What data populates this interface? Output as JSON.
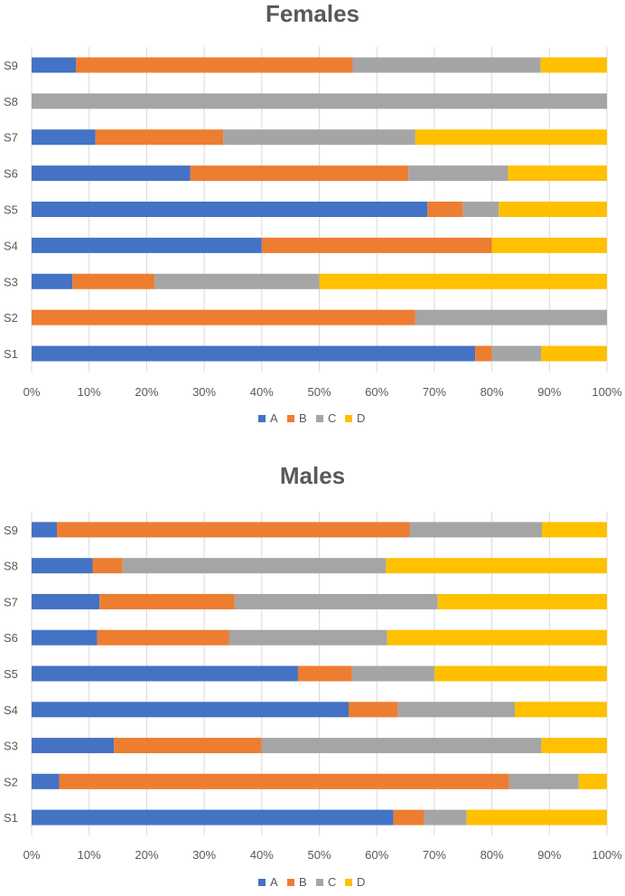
{
  "colors": {
    "A": "#4472c4",
    "B": "#ed7d31",
    "C": "#a5a5a5",
    "D": "#ffc000",
    "grid": "#d9d9d9",
    "text": "#595959"
  },
  "chart_data": [
    {
      "type": "bar",
      "orientation": "horizontal",
      "stacked": "percent",
      "title": "Females",
      "categories": [
        "S1",
        "S2",
        "S3",
        "S4",
        "S5",
        "S6",
        "S7",
        "S8",
        "S9"
      ],
      "series": [
        {
          "name": "A",
          "values": [
            77.1,
            0,
            7.1,
            40,
            68.8,
            27.6,
            11.1,
            0,
            7.7
          ]
        },
        {
          "name": "B",
          "values": [
            2.9,
            66.7,
            14.3,
            40,
            6.2,
            37.9,
            22.2,
            0,
            48.1
          ]
        },
        {
          "name": "C",
          "values": [
            8.6,
            33.3,
            28.6,
            0,
            6.2,
            17.3,
            33.4,
            100,
            32.7
          ]
        },
        {
          "name": "D",
          "values": [
            11.4,
            0,
            50,
            20,
            18.8,
            17.2,
            33.3,
            0,
            11.5
          ]
        }
      ],
      "xlim": [
        0,
        100
      ],
      "xticks": [
        "0%",
        "10%",
        "20%",
        "30%",
        "40%",
        "50%",
        "60%",
        "70%",
        "80%",
        "90%",
        "100%"
      ],
      "grid": true,
      "legend": "bottom"
    },
    {
      "type": "bar",
      "orientation": "horizontal",
      "stacked": "percent",
      "title": "Males",
      "categories": [
        "S1",
        "S2",
        "S3",
        "S4",
        "S5",
        "S6",
        "S7",
        "S8",
        "S9"
      ],
      "series": [
        {
          "name": "A",
          "values": [
            62.9,
            4.8,
            14.3,
            55.1,
            46.3,
            11.4,
            11.8,
            10.6,
            4.4
          ]
        },
        {
          "name": "B",
          "values": [
            5.3,
            78.2,
            25.7,
            8.6,
            9.4,
            22.9,
            23.5,
            5.2,
            61.3
          ]
        },
        {
          "name": "C",
          "values": [
            7.4,
            12.1,
            48.6,
            20.3,
            14.3,
            27.5,
            35.3,
            45.8,
            23.0
          ]
        },
        {
          "name": "D",
          "values": [
            24.4,
            4.9,
            11.4,
            16.0,
            30.0,
            38.2,
            29.4,
            38.4,
            11.3
          ]
        }
      ],
      "xlim": [
        0,
        100
      ],
      "xticks": [
        "0%",
        "10%",
        "20%",
        "30%",
        "40%",
        "50%",
        "60%",
        "70%",
        "80%",
        "90%",
        "100%"
      ],
      "grid": true,
      "legend": "bottom"
    }
  ]
}
